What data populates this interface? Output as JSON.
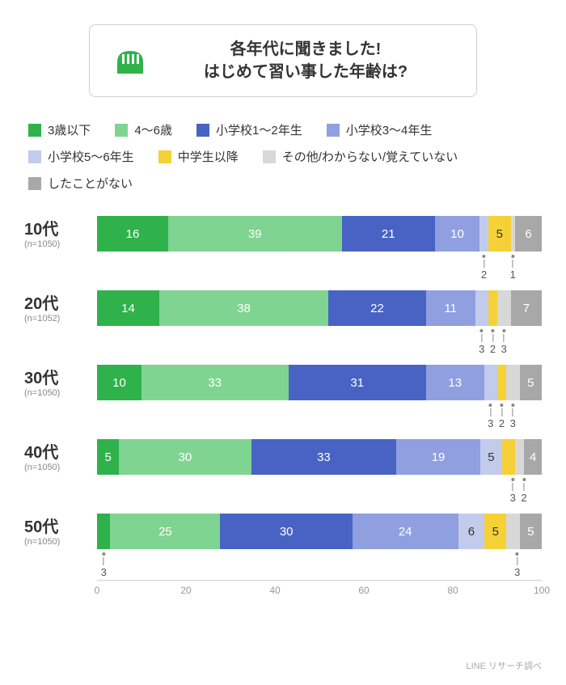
{
  "title_line1": "各年代に聞きました!",
  "title_line2": "はじめて習い事した年齢は?",
  "credit": "LINE リサーチ調べ",
  "colors": {
    "c1": "#2fb24b",
    "c2": "#7fd491",
    "c3": "#4863c4",
    "c4": "#8f9fe0",
    "c5": "#c3cbec",
    "c6": "#f5d137",
    "c7": "#d8d8d8",
    "c8": "#a8a8a8",
    "axis": "#d0d0d0",
    "text": "#333333"
  },
  "legend": [
    {
      "label": "3歳以下",
      "colorKey": "c1"
    },
    {
      "label": "4〜6歳",
      "colorKey": "c2"
    },
    {
      "label": "小学校1〜2年生",
      "colorKey": "c3"
    },
    {
      "label": "小学校3〜4年生",
      "colorKey": "c4"
    },
    {
      "label": "小学校5〜6年生",
      "colorKey": "c5"
    },
    {
      "label": "中学生以降",
      "colorKey": "c6"
    },
    {
      "label": "その他/わからない/覚えていない",
      "colorKey": "c7"
    },
    {
      "label": "したことがない",
      "colorKey": "c8"
    }
  ],
  "xticks": [
    0,
    20,
    40,
    60,
    80,
    100
  ],
  "rows": [
    {
      "age": "10代",
      "n": "(n=1050)",
      "segs": [
        {
          "v": 16,
          "colorKey": "c1",
          "show": "in"
        },
        {
          "v": 39,
          "colorKey": "c2",
          "show": "in"
        },
        {
          "v": 21,
          "colorKey": "c3",
          "show": "in"
        },
        {
          "v": 10,
          "colorKey": "c4",
          "show": "in"
        },
        {
          "v": 2,
          "colorKey": "c5",
          "show": "below",
          "dark": true
        },
        {
          "v": 5,
          "colorKey": "c6",
          "show": "in",
          "dark": true
        },
        {
          "v": 1,
          "colorKey": "c7",
          "show": "below",
          "dark": true
        },
        {
          "v": 6,
          "colorKey": "c8",
          "show": "in"
        }
      ]
    },
    {
      "age": "20代",
      "n": "(n=1052)",
      "segs": [
        {
          "v": 14,
          "colorKey": "c1",
          "show": "in"
        },
        {
          "v": 38,
          "colorKey": "c2",
          "show": "in"
        },
        {
          "v": 22,
          "colorKey": "c3",
          "show": "in"
        },
        {
          "v": 11,
          "colorKey": "c4",
          "show": "in"
        },
        {
          "v": 3,
          "colorKey": "c5",
          "show": "below",
          "dark": true
        },
        {
          "v": 2,
          "colorKey": "c6",
          "show": "below",
          "dark": true
        },
        {
          "v": 3,
          "colorKey": "c7",
          "show": "below",
          "dark": true
        },
        {
          "v": 7,
          "colorKey": "c8",
          "show": "in"
        }
      ]
    },
    {
      "age": "30代",
      "n": "(n=1050)",
      "segs": [
        {
          "v": 10,
          "colorKey": "c1",
          "show": "in"
        },
        {
          "v": 33,
          "colorKey": "c2",
          "show": "in"
        },
        {
          "v": 31,
          "colorKey": "c3",
          "show": "in"
        },
        {
          "v": 13,
          "colorKey": "c4",
          "show": "in"
        },
        {
          "v": 3,
          "colorKey": "c5",
          "show": "below",
          "dark": true
        },
        {
          "v": 2,
          "colorKey": "c6",
          "show": "below",
          "dark": true
        },
        {
          "v": 3,
          "colorKey": "c7",
          "show": "below",
          "dark": true
        },
        {
          "v": 5,
          "colorKey": "c8",
          "show": "in"
        }
      ]
    },
    {
      "age": "40代",
      "n": "(n=1050)",
      "segs": [
        {
          "v": 5,
          "colorKey": "c1",
          "show": "in"
        },
        {
          "v": 30,
          "colorKey": "c2",
          "show": "in"
        },
        {
          "v": 33,
          "colorKey": "c3",
          "show": "in"
        },
        {
          "v": 19,
          "colorKey": "c4",
          "show": "in"
        },
        {
          "v": 5,
          "colorKey": "c5",
          "show": "in",
          "dark": true
        },
        {
          "v": 3,
          "colorKey": "c6",
          "show": "below",
          "dark": true
        },
        {
          "v": 2,
          "colorKey": "c7",
          "show": "below",
          "dark": true
        },
        {
          "v": 4,
          "colorKey": "c8",
          "show": "in"
        }
      ]
    },
    {
      "age": "50代",
      "n": "(n=1050)",
      "segs": [
        {
          "v": 3,
          "colorKey": "c1",
          "show": "below"
        },
        {
          "v": 25,
          "colorKey": "c2",
          "show": "in"
        },
        {
          "v": 30,
          "colorKey": "c3",
          "show": "in"
        },
        {
          "v": 24,
          "colorKey": "c4",
          "show": "in"
        },
        {
          "v": 6,
          "colorKey": "c5",
          "show": "in",
          "dark": true
        },
        {
          "v": 5,
          "colorKey": "c6",
          "show": "in",
          "dark": true
        },
        {
          "v": 3,
          "colorKey": "c7",
          "show": "below",
          "dark": true
        },
        {
          "v": 5,
          "colorKey": "c8",
          "show": "in"
        }
      ]
    }
  ]
}
